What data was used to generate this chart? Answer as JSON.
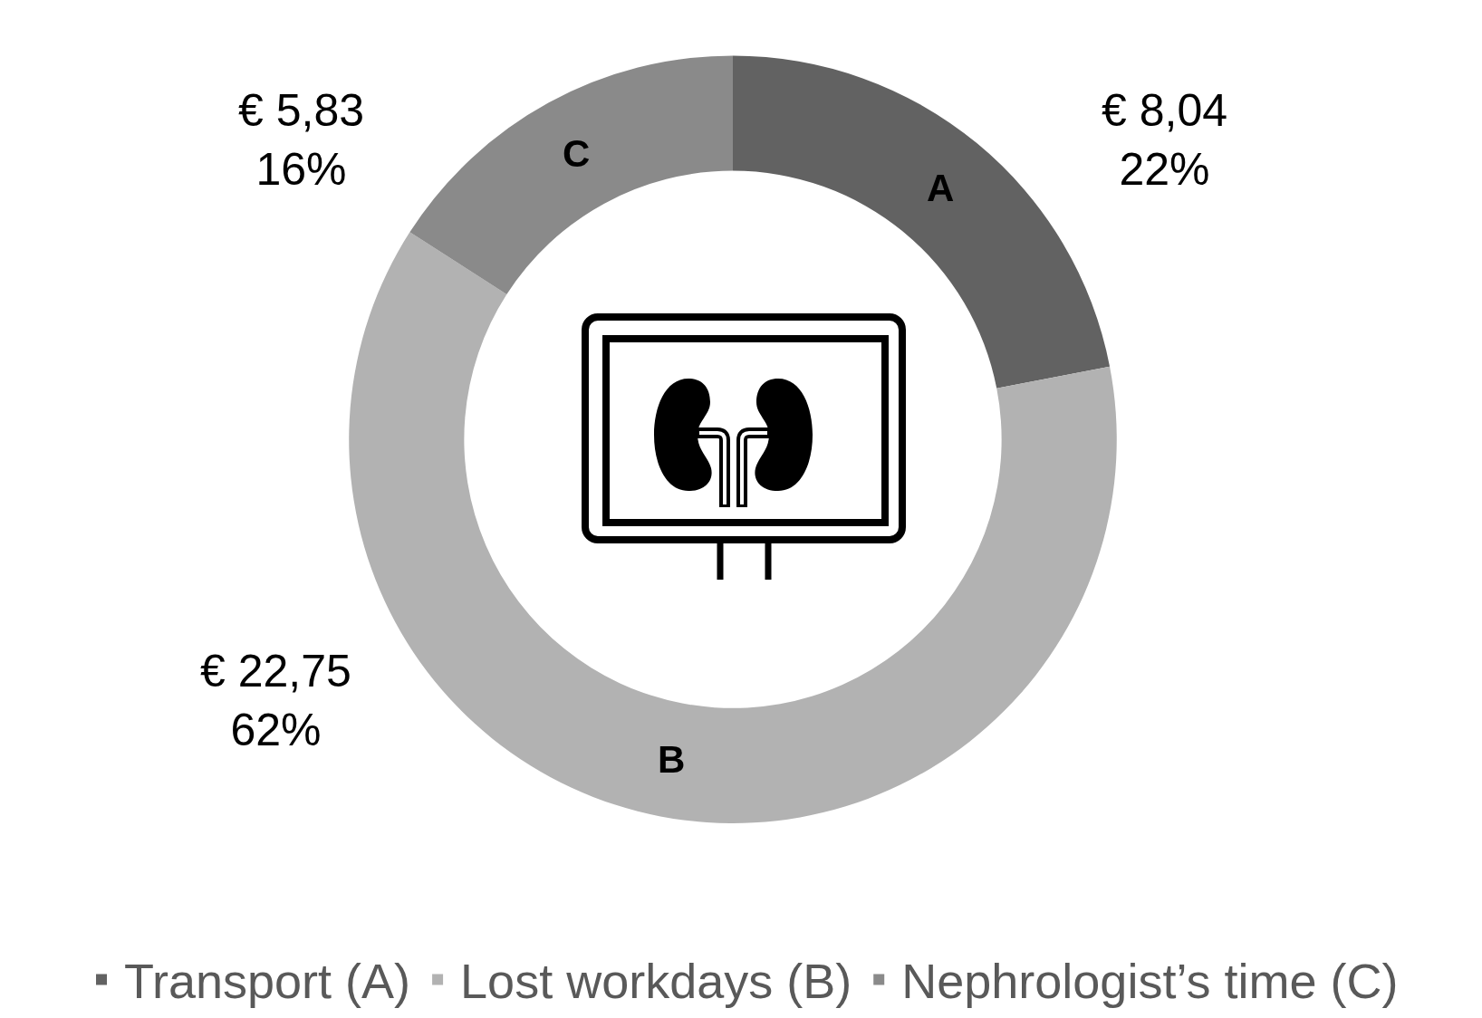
{
  "chart_data": {
    "type": "donut",
    "categories": [
      "Transport (A)",
      "Lost workdays (B)",
      "Nephrologist’s time (C)"
    ],
    "values": [
      8.04,
      22.75,
      5.83
    ],
    "colors": [
      "#626262",
      "#b2b2b2",
      "#8a8a8a"
    ],
    "value_labels": [
      "€ 8,04\n22%",
      "€ 22,75\n62%",
      "€ 5,83\n16%"
    ],
    "annotations": [
      "A",
      "B",
      "C"
    ],
    "legend": "bottom"
  }
}
